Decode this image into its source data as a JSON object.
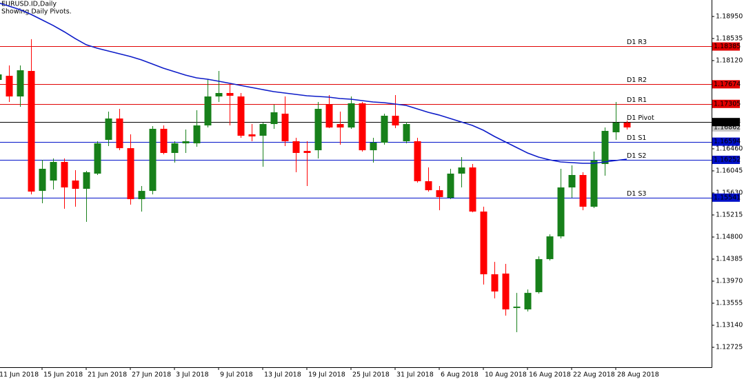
{
  "chart_data": {
    "type": "candlestick",
    "title": "EURUSD.ID,Daily",
    "subtitle": "Showing Daily Pivots.",
    "categories": [
      "11 Jun 2018",
      null,
      null,
      null,
      "15 Jun 2018",
      null,
      null,
      null,
      "21 Jun 2018",
      null,
      null,
      null,
      "27 Jun 2018",
      null,
      null,
      null,
      "3 Jul 2018",
      null,
      null,
      null,
      "9 Jul 2018",
      null,
      null,
      null,
      "13 Jul 2018",
      null,
      null,
      null,
      "19 Jul 2018",
      null,
      null,
      null,
      "25 Jul 2018",
      null,
      null,
      null,
      "31 Jul 2018",
      null,
      null,
      null,
      "6 Aug 2018",
      null,
      null,
      null,
      "10 Aug 2018",
      null,
      null,
      null,
      "16 Aug 2018",
      null,
      null,
      null,
      "22 Aug 2018",
      null,
      null,
      null,
      "28 Aug 2018",
      null
    ],
    "open": [
      1.17756,
      1.17834,
      1.17445,
      1.17925,
      1.15668,
      1.15863,
      1.16213,
      1.15863,
      1.15707,
      1.15993,
      1.16628,
      1.1703,
      1.16472,
      1.15513,
      1.15668,
      1.16836,
      1.16382,
      1.16563,
      1.16563,
      1.169,
      1.17445,
      1.1751,
      1.17445,
      1.16732,
      1.16706,
      1.16926,
      1.17121,
      1.16602,
      1.1642,
      1.16433,
      1.1729,
      1.16926,
      1.16861,
      1.17316,
      1.16433,
      1.16576,
      1.17082,
      1.16602,
      1.16602,
      1.1585,
      1.15681,
      1.15539,
      1.15993,
      1.16109,
      1.15279,
      1.14099,
      1.14112,
      1.13464,
      1.13438,
      1.13762,
      1.14384,
      1.14812,
      1.15733,
      1.15967,
      1.1537,
      1.16174,
      1.16771,
      1.16952
    ],
    "high": [
      1.17964,
      1.18029,
      1.18029,
      1.18522,
      1.16252,
      1.16278,
      1.16278,
      1.16058,
      1.16045,
      1.16602,
      1.1716,
      1.17212,
      1.16732,
      1.15759,
      1.16887,
      1.169,
      1.16602,
      1.16823,
      1.17186,
      1.17769,
      1.17925,
      1.17666,
      1.1751,
      1.16926,
      1.16952,
      1.1729,
      1.17445,
      1.16667,
      1.16602,
      1.17341,
      1.17471,
      1.1716,
      1.17445,
      1.17341,
      1.16667,
      1.17121,
      1.17471,
      1.16965,
      1.16667,
      1.16109,
      1.15759,
      1.16084,
      1.16304,
      1.16174,
      1.1537,
      1.14332,
      1.14294,
      1.13749,
      1.13814,
      1.14436,
      1.14851,
      1.16084,
      1.16148,
      1.16019,
      1.16408,
      1.16861,
      1.17341,
      1.16991
    ],
    "low": [
      1.17705,
      1.17341,
      1.17251,
      1.15603,
      1.15435,
      1.15694,
      1.15331,
      1.1537,
      1.15085,
      1.15967,
      1.16511,
      1.16433,
      1.15409,
      1.15279,
      1.15603,
      1.16356,
      1.162,
      1.16382,
      1.16498,
      1.16861,
      1.17341,
      1.169,
      1.16667,
      1.16602,
      1.16122,
      1.16836,
      1.16511,
      1.16019,
      1.15759,
      1.16278,
      1.16849,
      1.16537,
      1.16836,
      1.16408,
      1.162,
      1.16537,
      1.16849,
      1.16563,
      1.15824,
      1.15655,
      1.15305,
      1.15513,
      1.15733,
      1.15266,
      1.13905,
      1.13645,
      1.13321,
      1.1301,
      1.13399,
      1.13736,
      1.14358,
      1.14773,
      1.15539,
      1.15305,
      1.15344,
      1.15954,
      1.16628,
      1.16823
    ],
    "close": [
      1.1786,
      1.17445,
      1.17938,
      1.15655,
      1.16084,
      1.16213,
      1.15733,
      1.15707,
      1.16019,
      1.16563,
      1.1703,
      1.16472,
      1.15513,
      1.15668,
      1.16836,
      1.16382,
      1.16563,
      1.16602,
      1.169,
      1.17445,
      1.1751,
      1.17458,
      1.16706,
      1.16693,
      1.16926,
      1.17147,
      1.16602,
      1.16382,
      1.16382,
      1.17212,
      1.16861,
      1.16861,
      1.17316,
      1.16433,
      1.16576,
      1.17082,
      1.169,
      1.16926,
      1.1585,
      1.15681,
      1.15552,
      1.15993,
      1.16109,
      1.15279,
      1.14099,
      1.13775,
      1.13438,
      1.1349,
      1.13749,
      1.14384,
      1.14812,
      1.15733,
      1.15967,
      1.1537,
      1.16239,
      1.16797,
      1.16952,
      1.16862
    ],
    "up_color": "#17801a",
    "down_color": "#ff0000",
    "ma": {
      "color": "#0c1bc8",
      "values": [
        1.19209,
        1.19144,
        1.19079,
        1.18989,
        1.18885,
        1.18781,
        1.18664,
        1.18535,
        1.18418,
        1.18353,
        1.18301,
        1.18249,
        1.18197,
        1.18133,
        1.18055,
        1.17977,
        1.17912,
        1.17847,
        1.17795,
        1.17769,
        1.17731,
        1.17692,
        1.17653,
        1.17614,
        1.17575,
        1.17536,
        1.1751,
        1.17484,
        1.17458,
        1.17445,
        1.17432,
        1.17406,
        1.17393,
        1.17367,
        1.17341,
        1.17328,
        1.17303,
        1.17277,
        1.17212,
        1.17147,
        1.17095,
        1.1703,
        1.16965,
        1.169,
        1.1681,
        1.16693,
        1.16589,
        1.16485,
        1.16382,
        1.16304,
        1.16252,
        1.16213,
        1.162,
        1.16187,
        1.16187,
        1.16213,
        1.16239,
        1.16265
      ]
    },
    "levels": [
      {
        "name": "D1 R3",
        "value": 1.18385,
        "color": "#e00000"
      },
      {
        "name": "D1 R2",
        "value": 1.17674,
        "color": "#e00000"
      },
      {
        "name": "D1 R1",
        "value": 1.17305,
        "color": "#e00000"
      },
      {
        "name": "D1 Pivot",
        "value": 1.16963,
        "color": "#000000"
      },
      {
        "name": "D1 S1",
        "value": 1.16594,
        "color": "#0010c8"
      },
      {
        "name": "D1 S2",
        "value": 1.16252,
        "color": "#0010c8"
      },
      {
        "name": "D1 S3",
        "value": 1.15541,
        "color": "#0010c8"
      }
    ],
    "current_price_color": "#c8c8c8",
    "ylim": [
      1.1235,
      1.1926
    ],
    "yticks": [
      {
        "value": 1.1895,
        "label": "1.18950"
      },
      1.18535,
      {
        "value": 1.1812,
        "label": "1.18120"
      },
      {
        "value": 1.1646,
        "label": "1.16460"
      },
      1.16045,
      {
        "value": 1.1563,
        "label": "1.15630"
      },
      1.15215,
      {
        "value": 1.148,
        "label": "1.14800"
      },
      1.14385,
      {
        "value": 1.1397,
        "label": "1.13970"
      },
      1.13555,
      {
        "value": 1.1314,
        "label": "1.13140"
      },
      1.12725
    ]
  }
}
